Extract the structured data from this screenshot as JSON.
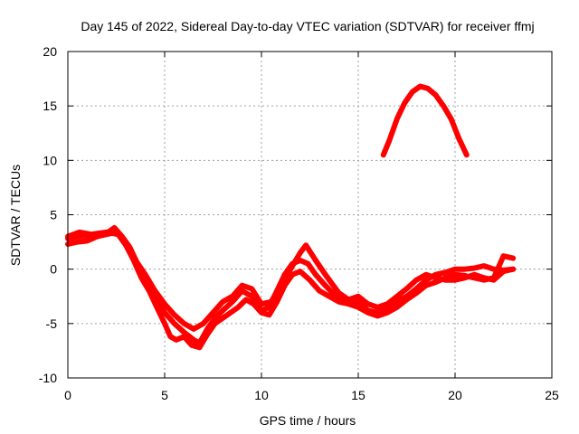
{
  "chart_data": {
    "type": "line",
    "title": "Day 145 of 2022, Sidereal Day-to-day VTEC variation (SDTVAR) for receiver ffmj",
    "xlabel": "GPS time / hours",
    "ylabel": "SDTVAR / TECUs",
    "xlim": [
      0,
      25
    ],
    "ylim": [
      -10,
      20
    ],
    "xticks": [
      0,
      5,
      10,
      15,
      20,
      25
    ],
    "yticks": [
      -10,
      -5,
      0,
      5,
      10,
      15,
      20
    ],
    "grid": true,
    "line_color": "#ff0000",
    "series": [
      {
        "name": "track-1",
        "points": [
          [
            0,
            2.8
          ],
          [
            0.5,
            3.0
          ],
          [
            1.0,
            3.1
          ],
          [
            1.5,
            3.0
          ],
          [
            2.0,
            3.3
          ],
          [
            2.4,
            3.8
          ],
          [
            2.8,
            3.0
          ],
          [
            3.2,
            2.0
          ],
          [
            3.6,
            0.5
          ],
          [
            4.0,
            -1.0
          ],
          [
            4.5,
            -2.5
          ],
          [
            5.0,
            -4.0
          ],
          [
            5.5,
            -5.0
          ],
          [
            6.0,
            -5.8
          ],
          [
            6.5,
            -6.5
          ],
          [
            6.8,
            -6.8
          ],
          [
            7.2,
            -5.5
          ],
          [
            7.6,
            -4.5
          ],
          [
            8.0,
            -3.8
          ],
          [
            8.5,
            -3.0
          ],
          [
            9.0,
            -2.0
          ],
          [
            9.5,
            -2.5
          ],
          [
            10.0,
            -3.8
          ],
          [
            10.4,
            -3.5
          ],
          [
            10.8,
            -2.0
          ],
          [
            11.2,
            -0.5
          ],
          [
            11.6,
            0.5
          ],
          [
            12.0,
            0.8
          ],
          [
            12.4,
            0.5
          ],
          [
            12.8,
            -0.5
          ],
          [
            13.3,
            -1.5
          ],
          [
            14.0,
            -2.8
          ],
          [
            15.0,
            -3.0
          ],
          [
            15.5,
            -3.8
          ],
          [
            16.0,
            -4.0
          ],
          [
            16.5,
            -3.6
          ],
          [
            17.0,
            -3.0
          ],
          [
            17.5,
            -2.5
          ],
          [
            18.0,
            -1.8
          ],
          [
            18.5,
            -1.0
          ],
          [
            19.0,
            -0.5
          ],
          [
            19.5,
            -0.3
          ],
          [
            20.0,
            0.0
          ],
          [
            20.5,
            0.0
          ],
          [
            21.0,
            0.1
          ],
          [
            21.5,
            0.3
          ],
          [
            22.0,
            0.0
          ],
          [
            22.5,
            -0.1
          ],
          [
            23.0,
            0.0
          ]
        ]
      },
      {
        "name": "track-2",
        "points": [
          [
            0,
            2.3
          ],
          [
            0.5,
            2.5
          ],
          [
            1.0,
            2.6
          ],
          [
            1.5,
            3.0
          ],
          [
            2.0,
            3.2
          ],
          [
            2.5,
            3.4
          ],
          [
            3.0,
            2.5
          ],
          [
            3.5,
            0.8
          ],
          [
            4.0,
            -0.5
          ],
          [
            4.5,
            -2.0
          ],
          [
            5.0,
            -3.2
          ],
          [
            5.5,
            -4.2
          ],
          [
            6.0,
            -5.0
          ],
          [
            6.5,
            -5.5
          ],
          [
            7.0,
            -5.0
          ],
          [
            7.5,
            -4.0
          ],
          [
            8.0,
            -3.0
          ],
          [
            8.5,
            -2.5
          ],
          [
            9.0,
            -1.5
          ],
          [
            9.5,
            -1.8
          ],
          [
            10.0,
            -3.2
          ],
          [
            10.5,
            -3.0
          ],
          [
            11.0,
            -1.5
          ],
          [
            11.5,
            0.0
          ],
          [
            12.0,
            1.5
          ],
          [
            12.3,
            2.2
          ],
          [
            12.8,
            0.8
          ],
          [
            13.3,
            -0.5
          ],
          [
            14.0,
            -2.2
          ],
          [
            14.5,
            -2.8
          ],
          [
            15.0,
            -2.5
          ],
          [
            15.5,
            -3.2
          ],
          [
            16.0,
            -3.5
          ],
          [
            16.5,
            -3.2
          ],
          [
            17.0,
            -2.5
          ],
          [
            17.5,
            -1.8
          ],
          [
            18.0,
            -1.0
          ],
          [
            18.5,
            -0.5
          ],
          [
            19.0,
            -0.8
          ],
          [
            19.5,
            -1.0
          ],
          [
            20.0,
            -1.0
          ],
          [
            20.5,
            -0.8
          ],
          [
            21.0,
            -0.5
          ],
          [
            21.5,
            -0.8
          ],
          [
            22.0,
            -1.0
          ],
          [
            22.5,
            -0.2
          ],
          [
            23.0,
            0.0
          ]
        ]
      },
      {
        "name": "track-3",
        "points": [
          [
            0,
            3.0
          ],
          [
            0.6,
            3.4
          ],
          [
            1.2,
            3.2
          ],
          [
            2.0,
            3.4
          ],
          [
            2.6,
            3.2
          ],
          [
            3.0,
            2.2
          ],
          [
            3.4,
            0.8
          ],
          [
            3.8,
            -0.8
          ],
          [
            4.2,
            -2.0
          ],
          [
            4.6,
            -3.5
          ],
          [
            5.0,
            -5.0
          ],
          [
            5.3,
            -6.2
          ],
          [
            5.6,
            -6.5
          ],
          [
            6.0,
            -6.2
          ],
          [
            6.4,
            -7.0
          ],
          [
            6.8,
            -7.2
          ],
          [
            7.2,
            -6.0
          ],
          [
            7.6,
            -5.0
          ],
          [
            8.0,
            -4.5
          ],
          [
            8.4,
            -4.0
          ],
          [
            8.8,
            -3.5
          ],
          [
            9.2,
            -2.8
          ],
          [
            9.6,
            -3.2
          ],
          [
            10.0,
            -4.0
          ],
          [
            10.4,
            -4.2
          ],
          [
            10.8,
            -3.0
          ],
          [
            11.2,
            -1.5
          ],
          [
            11.6,
            -0.5
          ],
          [
            12.0,
            -0.2
          ],
          [
            12.5,
            -1.0
          ],
          [
            13.0,
            -2.0
          ],
          [
            13.5,
            -2.5
          ],
          [
            14.0,
            -3.0
          ],
          [
            14.5,
            -3.2
          ],
          [
            15.0,
            -3.5
          ],
          [
            15.5,
            -4.0
          ],
          [
            16.0,
            -4.3
          ],
          [
            16.5,
            -4.0
          ],
          [
            17.0,
            -3.5
          ],
          [
            17.5,
            -2.8
          ],
          [
            18.0,
            -2.2
          ],
          [
            18.5,
            -1.5
          ],
          [
            19.0,
            -1.2
          ],
          [
            19.5,
            -0.8
          ],
          [
            20.0,
            -0.5
          ],
          [
            20.5,
            -0.6
          ],
          [
            21.0,
            -0.8
          ],
          [
            21.5,
            -1.0
          ],
          [
            22.0,
            -0.8
          ],
          [
            22.5,
            1.2
          ],
          [
            23.0,
            1.0
          ]
        ]
      },
      {
        "name": "track-4",
        "points": [
          [
            16.3,
            10.5
          ],
          [
            16.6,
            11.8
          ],
          [
            17.0,
            13.8
          ],
          [
            17.4,
            15.3
          ],
          [
            17.8,
            16.3
          ],
          [
            18.2,
            16.8
          ],
          [
            18.6,
            16.6
          ],
          [
            19.0,
            16.0
          ],
          [
            19.4,
            15.0
          ],
          [
            19.8,
            13.8
          ],
          [
            20.2,
            12.0
          ],
          [
            20.6,
            10.5
          ]
        ]
      }
    ]
  }
}
